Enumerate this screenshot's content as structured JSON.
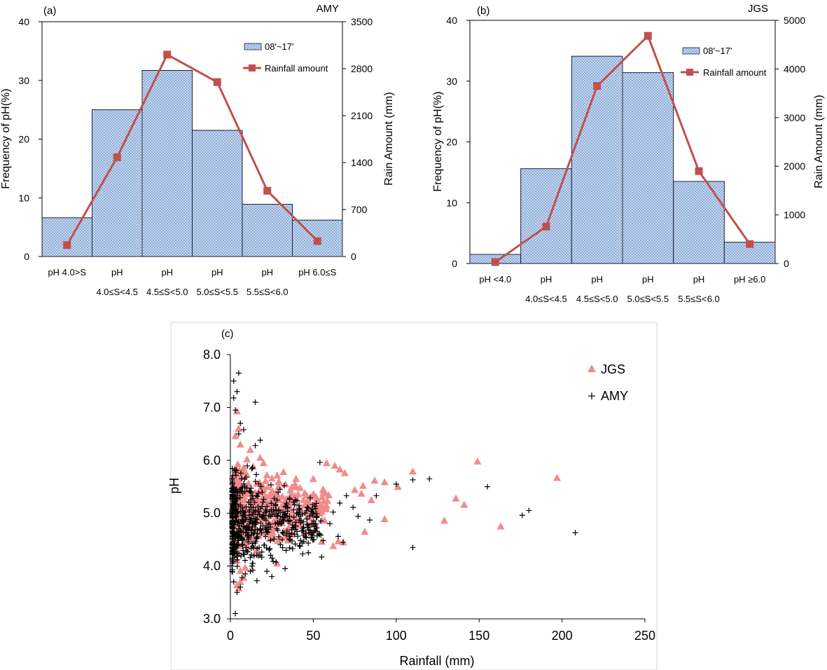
{
  "colors": {
    "bar_fill": "#c6d7ee",
    "bar_dot": "#4f7fc2",
    "bar_edge": "#1f1f33",
    "line": "#c0504d",
    "triangle": "#f08c8c",
    "plus": "#000000",
    "axis": "#000000"
  },
  "chart_data": [
    {
      "type": "bar",
      "panel": "(a)",
      "station": "AMY",
      "categories": [
        "pH 4.0>S",
        "pH 4.0≤S<4.5",
        "pH 4.5≤S<5.0",
        "pH 5.0≤S<5.5",
        "pH 5.5≤S<6.0",
        "pH 6.0≤S"
      ],
      "category_lines": [
        [
          "pH 4.0>S",
          ""
        ],
        [
          "pH",
          "4.0≤S<4.5"
        ],
        [
          "pH",
          "4.5≤S<5.0"
        ],
        [
          "pH",
          "5.0≤S<5.5"
        ],
        [
          "pH",
          "5.5≤S<6.0"
        ],
        [
          "pH 6.0≤S",
          ""
        ]
      ],
      "series": [
        {
          "name": "08'~17'",
          "kind": "bar",
          "axis": "left",
          "values": [
            6.6,
            25.0,
            31.7,
            21.5,
            8.9,
            6.2
          ]
        },
        {
          "name": "Rainfall amount",
          "kind": "line",
          "axis": "right",
          "values": [
            170,
            1480,
            3010,
            2600,
            980,
            230
          ]
        }
      ],
      "ylabel": "Frequency of pH(%)",
      "y2label": "Rain Amount (mm)",
      "ylim": [
        0,
        40
      ],
      "yticks": [
        0,
        10,
        20,
        30,
        40
      ],
      "y2lim": [
        0,
        3500
      ],
      "y2ticks": [
        0,
        700,
        1400,
        2100,
        2800,
        3500
      ],
      "legend_position": "top-right"
    },
    {
      "type": "bar",
      "panel": "(b)",
      "station": "JGS",
      "categories": [
        "pH <4.0",
        "pH 4.0≤S<4.5",
        "pH 4.5≤S<5.0",
        "pH 5.0≤S<5.5",
        "pH 5.5≤S<6.0",
        "pH ≥6.0"
      ],
      "category_lines": [
        [
          "pH <4.0",
          ""
        ],
        [
          "pH",
          "4.0≤S<4.5"
        ],
        [
          "pH",
          "4.5≤S<5.0"
        ],
        [
          "pH",
          "5.0≤S<5.5"
        ],
        [
          "pH",
          "5.5≤S<6.0"
        ],
        [
          "pH ≥6.0",
          ""
        ]
      ],
      "series": [
        {
          "name": "08'~17'",
          "kind": "bar",
          "axis": "left",
          "values": [
            1.5,
            15.6,
            34.1,
            31.4,
            13.5,
            3.5
          ]
        },
        {
          "name": "Rainfall amount",
          "kind": "line",
          "axis": "right",
          "values": [
            30,
            760,
            3650,
            4680,
            1900,
            400
          ]
        }
      ],
      "ylabel": "Frequency of pH(%)",
      "y2label": "Rain Amount (mm)",
      "ylim": [
        0,
        40
      ],
      "yticks": [
        0,
        10,
        20,
        30,
        40
      ],
      "y2lim": [
        0,
        5000
      ],
      "y2ticks": [
        0,
        1000,
        2000,
        3000,
        4000,
        5000
      ],
      "legend_position": "top-right"
    },
    {
      "type": "scatter",
      "panel": "(c)",
      "xlabel": "Rainfall (mm)",
      "ylabel": "pH",
      "xlim": [
        0,
        250
      ],
      "xticks": [
        0,
        50,
        100,
        150,
        200,
        250
      ],
      "ylim": [
        3.0,
        8.0
      ],
      "yticks": [
        "3.0",
        "4.0",
        "5.0",
        "6.0",
        "7.0",
        "8.0"
      ],
      "legend_position": "top-right",
      "series": [
        {
          "name": "JGS",
          "marker": "triangle",
          "points": [
            [
              4,
              6.93
            ],
            [
              149,
              5.98
            ],
            [
              197,
              5.67
            ],
            [
              110,
              5.79
            ],
            [
              101,
              5.5
            ],
            [
              87,
              5.62
            ],
            [
              93,
              5.59
            ],
            [
              80,
              5.52
            ],
            [
              75,
              5.44
            ],
            [
              85,
              5.25
            ],
            [
              79,
              5.37
            ],
            [
              136,
              5.28
            ],
            [
              141,
              5.16
            ],
            [
              129,
              4.86
            ],
            [
              163,
              4.75
            ],
            [
              93,
              4.89
            ],
            [
              81,
              4.65
            ],
            [
              65,
              4.47
            ],
            [
              68,
              4.45
            ],
            [
              62,
              4.38
            ],
            [
              55,
              4.46
            ],
            [
              58,
              5.95
            ],
            [
              66,
              5.83
            ],
            [
              50,
              5.65
            ],
            [
              69,
              5.76
            ],
            [
              63,
              5.9
            ],
            [
              28,
              4.05
            ],
            [
              42,
              5.48
            ],
            [
              46,
              5.22
            ],
            [
              38,
              4.92
            ],
            [
              35,
              4.72
            ],
            [
              25,
              5.66
            ],
            [
              32,
              5.78
            ],
            [
              20,
              5.95
            ],
            [
              18,
              6.05
            ],
            [
              12,
              6.2
            ],
            [
              10,
              6.02
            ],
            [
              8,
              5.86
            ],
            [
              6,
              6.3
            ],
            [
              5,
              6.6
            ],
            [
              3,
              6.46
            ],
            [
              4,
              4.1
            ],
            [
              6,
              3.91
            ],
            [
              8,
              3.78
            ],
            [
              4,
              3.64
            ],
            [
              5,
              3.58
            ],
            [
              6,
              3.7
            ],
            [
              9,
              3.97
            ]
          ],
          "cluster": {
            "count": 420,
            "x_range": [
              2,
              60
            ],
            "y_range": [
              4.0,
              6.2
            ],
            "y_center": 5.1
          }
        },
        {
          "name": "AMY",
          "marker": "plus",
          "points": [
            [
              5,
              7.65
            ],
            [
              2,
              7.5
            ],
            [
              4,
              7.3
            ],
            [
              15,
              7.1
            ],
            [
              2,
              7.18
            ],
            [
              3,
              6.95
            ],
            [
              6,
              6.7
            ],
            [
              5,
              6.5
            ],
            [
              8,
              6.58
            ],
            [
              18,
              6.38
            ],
            [
              15,
              6.28
            ],
            [
              54,
              5.96
            ],
            [
              110,
              5.63
            ],
            [
              100,
              5.55
            ],
            [
              120,
              5.65
            ],
            [
              155,
              5.5
            ],
            [
              180,
              5.05
            ],
            [
              176,
              4.96
            ],
            [
              208,
              4.63
            ],
            [
              110,
              4.35
            ],
            [
              88,
              5.33
            ],
            [
              66,
              5.19
            ],
            [
              70,
              5.33
            ],
            [
              62,
              5.02
            ],
            [
              74,
              5.11
            ],
            [
              77,
              4.94
            ],
            [
              84,
              4.87
            ],
            [
              60,
              4.8
            ],
            [
              65,
              4.56
            ],
            [
              68,
              4.45
            ],
            [
              56,
              4.48
            ],
            [
              55,
              4.17
            ],
            [
              47,
              4.25
            ],
            [
              42,
              4.37
            ],
            [
              36,
              4.5
            ],
            [
              33,
              3.95
            ],
            [
              25,
              3.8
            ],
            [
              22,
              3.9
            ],
            [
              3,
              3.1
            ],
            [
              4,
              3.5
            ],
            [
              6,
              3.6
            ],
            [
              2,
              3.7
            ],
            [
              7,
              3.78
            ],
            [
              9,
              3.85
            ],
            [
              12,
              3.9
            ],
            [
              16,
              3.72
            ],
            [
              13,
              4.0
            ]
          ],
          "cluster": {
            "count": 560,
            "x_range": [
              1,
              55
            ],
            "y_range": [
              3.6,
              6.4
            ],
            "y_center": 4.8
          }
        }
      ]
    }
  ]
}
